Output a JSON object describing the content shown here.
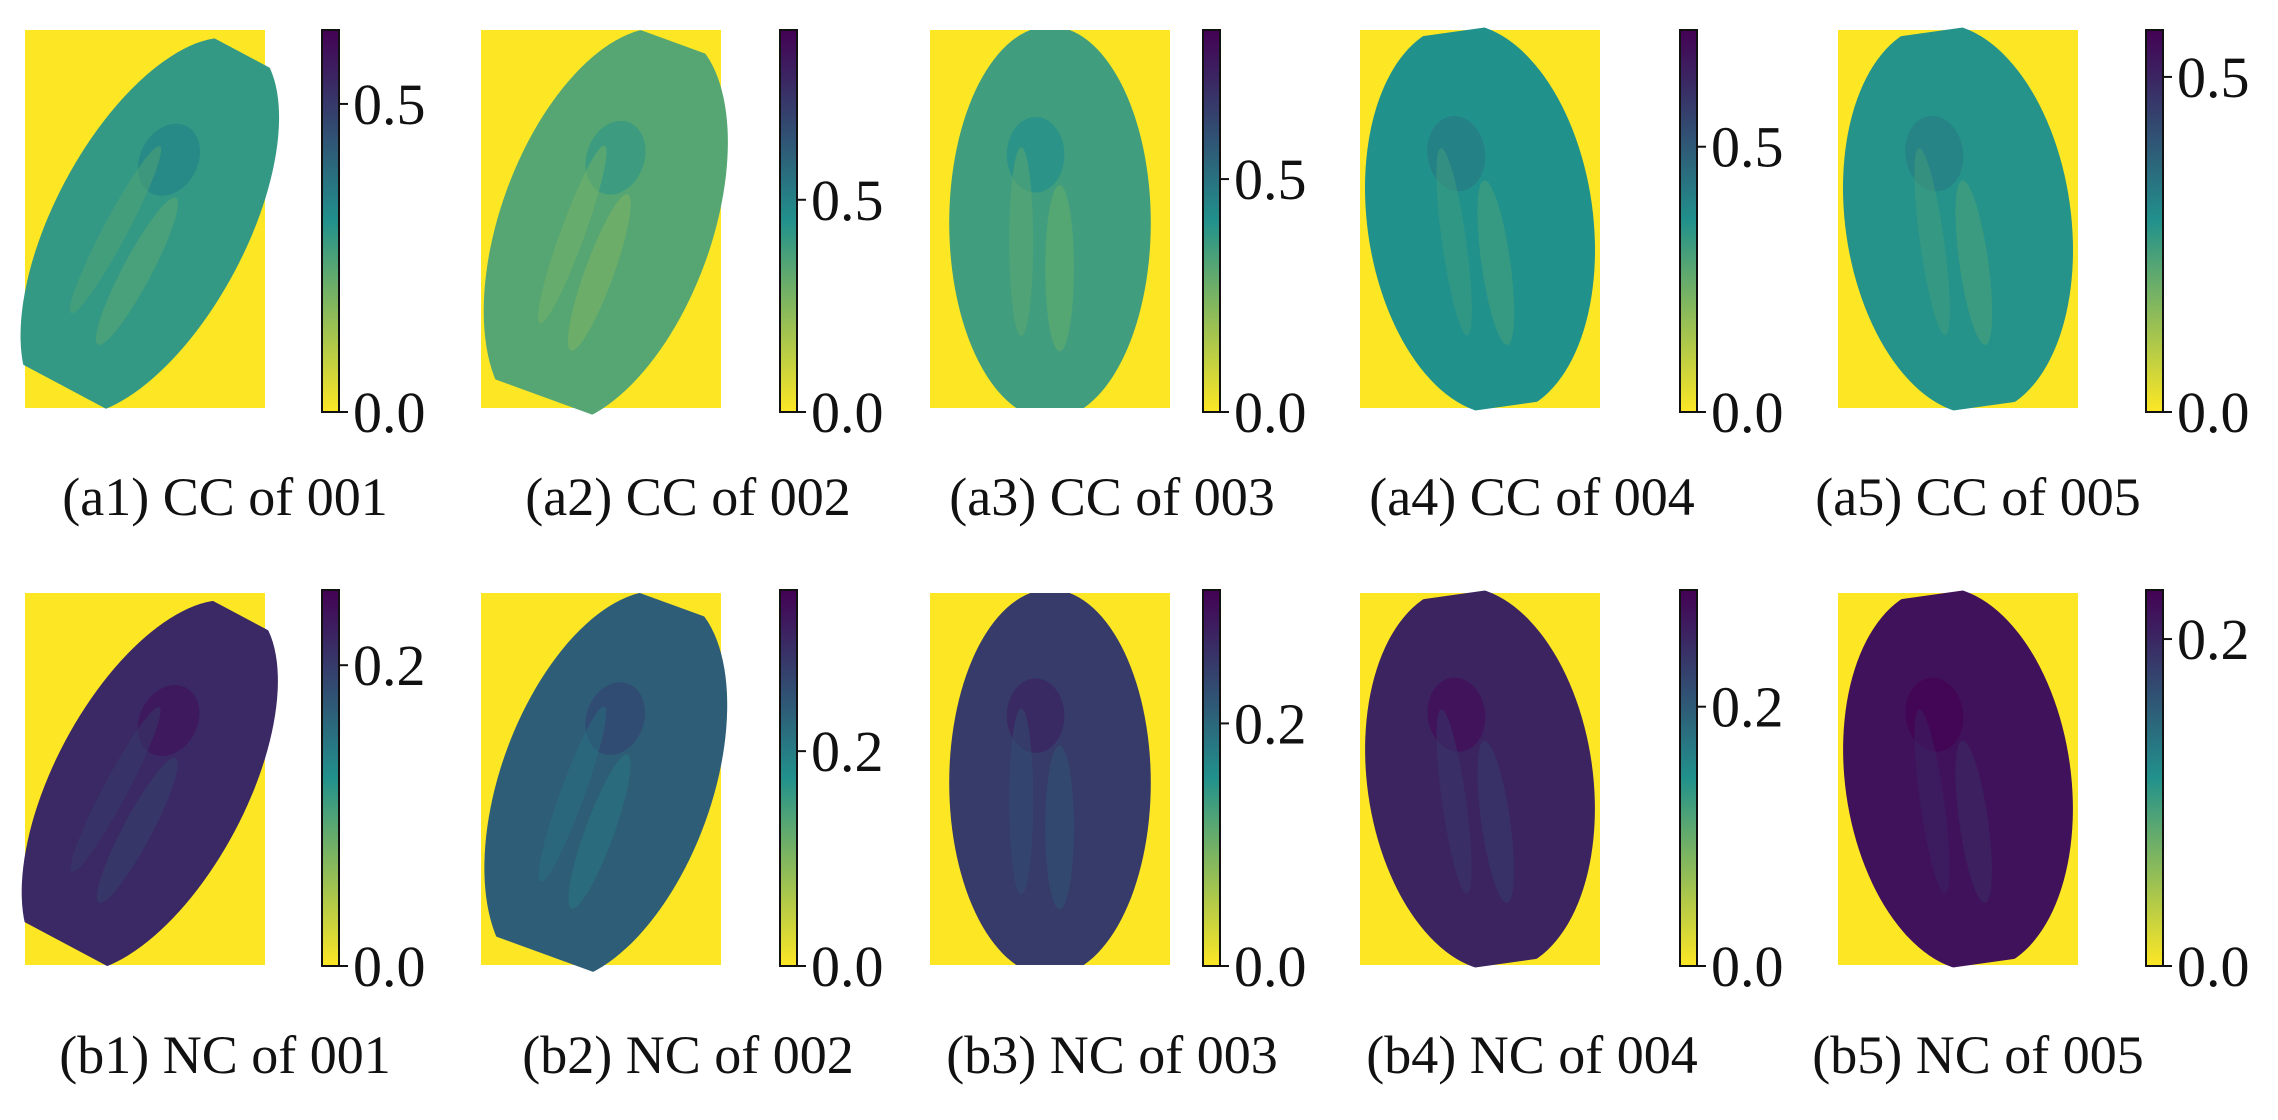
{
  "figure": {
    "rows": [
      {
        "id": "a",
        "colormap": "viridis-reversed",
        "colors": {
          "low": "#fde725",
          "mid": "#21918c",
          "high": "#440154"
        },
        "panels": [
          {
            "label": "(a1) CC of 001",
            "colorbar_ticks": [
              "0.5",
              "0.0"
            ],
            "tick_values": [
              0.5,
              0.0
            ],
            "cbar_max": 0.62,
            "fill_level": 0.46,
            "seed_shape": "tilted"
          },
          {
            "label": "(a2) CC of 002",
            "colorbar_ticks": [
              "0.5",
              "0.0"
            ],
            "tick_values": [
              0.5,
              0.0
            ],
            "cbar_max": 0.9,
            "fill_level": 0.38,
            "seed_shape": "tilted-wide"
          },
          {
            "label": "(a3) CC of 003",
            "colorbar_ticks": [
              "0.5",
              "0.0"
            ],
            "tick_values": [
              0.5,
              0.0
            ],
            "cbar_max": 0.82,
            "fill_level": 0.43,
            "seed_shape": "upright"
          },
          {
            "label": "(a4) CC of 004",
            "colorbar_ticks": [
              "0.5",
              "0.0"
            ],
            "tick_values": [
              0.5,
              0.0
            ],
            "cbar_max": 0.72,
            "fill_level": 0.5,
            "seed_shape": "upright-wide"
          },
          {
            "label": "(a5) CC of 005",
            "colorbar_ticks": [
              "0.5",
              "0.0"
            ],
            "tick_values": [
              0.5,
              0.0
            ],
            "cbar_max": 0.57,
            "fill_level": 0.49,
            "seed_shape": "upright-wide"
          }
        ]
      },
      {
        "id": "b",
        "colormap": "viridis-reversed",
        "colors": {
          "low": "#fde725",
          "mid": "#21918c",
          "high": "#440154"
        },
        "panels": [
          {
            "label": "(b1) NC of 001",
            "colorbar_ticks": [
              "0.2",
              "0.0"
            ],
            "tick_values": [
              0.2,
              0.0
            ],
            "cbar_max": 0.25,
            "fill_level": 0.86,
            "seed_shape": "tilted"
          },
          {
            "label": "(b2) NC of 002",
            "colorbar_ticks": [
              "0.2",
              "0.0"
            ],
            "tick_values": [
              0.2,
              0.0
            ],
            "cbar_max": 0.35,
            "fill_level": 0.68,
            "seed_shape": "tilted-wide"
          },
          {
            "label": "(b3) NC of 003",
            "colorbar_ticks": [
              "0.2",
              "0.0"
            ],
            "tick_values": [
              0.2,
              0.0
            ],
            "cbar_max": 0.31,
            "fill_level": 0.8,
            "seed_shape": "upright"
          },
          {
            "label": "(b4) NC of 004",
            "colorbar_ticks": [
              "0.2",
              "0.0"
            ],
            "tick_values": [
              0.2,
              0.0
            ],
            "cbar_max": 0.29,
            "fill_level": 0.88,
            "seed_shape": "upright-wide"
          },
          {
            "label": "(b5) NC of 005",
            "colorbar_ticks": [
              "0.2",
              "0.0"
            ],
            "tick_values": [
              0.2,
              0.0
            ],
            "cbar_max": 0.23,
            "fill_level": 0.94,
            "seed_shape": "upright-wide"
          }
        ]
      }
    ]
  },
  "chart_data": [
    {
      "type": "heatmap",
      "title": "(a1) CC of 001",
      "colorbar": {
        "ticks": [
          0.0,
          0.5
        ],
        "range": [
          0.0,
          0.62
        ]
      },
      "background_value": 0.0
    },
    {
      "type": "heatmap",
      "title": "(a2) CC of 002",
      "colorbar": {
        "ticks": [
          0.0,
          0.5
        ],
        "range": [
          0.0,
          0.9
        ]
      },
      "background_value": 0.0
    },
    {
      "type": "heatmap",
      "title": "(a3) CC of 003",
      "colorbar": {
        "ticks": [
          0.0,
          0.5
        ],
        "range": [
          0.0,
          0.82
        ]
      },
      "background_value": 0.0
    },
    {
      "type": "heatmap",
      "title": "(a4) CC of 004",
      "colorbar": {
        "ticks": [
          0.0,
          0.5
        ],
        "range": [
          0.0,
          0.72
        ]
      },
      "background_value": 0.0
    },
    {
      "type": "heatmap",
      "title": "(a5) CC of 005",
      "colorbar": {
        "ticks": [
          0.0,
          0.5
        ],
        "range": [
          0.0,
          0.57
        ]
      },
      "background_value": 0.0
    },
    {
      "type": "heatmap",
      "title": "(b1) NC of 001",
      "colorbar": {
        "ticks": [
          0.0,
          0.2
        ],
        "range": [
          0.0,
          0.25
        ]
      },
      "background_value": 0.0
    },
    {
      "type": "heatmap",
      "title": "(b2) NC of 002",
      "colorbar": {
        "ticks": [
          0.0,
          0.2
        ],
        "range": [
          0.0,
          0.35
        ]
      },
      "background_value": 0.0
    },
    {
      "type": "heatmap",
      "title": "(b3) NC of 003",
      "colorbar": {
        "ticks": [
          0.0,
          0.2
        ],
        "range": [
          0.0,
          0.31
        ]
      },
      "background_value": 0.0
    },
    {
      "type": "heatmap",
      "title": "(b4) NC of 004",
      "colorbar": {
        "ticks": [
          0.0,
          0.2
        ],
        "range": [
          0.0,
          0.29
        ]
      },
      "background_value": 0.0
    },
    {
      "type": "heatmap",
      "title": "(b5) NC of 005",
      "colorbar": {
        "ticks": [
          0.0,
          0.2
        ],
        "range": [
          0.0,
          0.23
        ]
      },
      "background_value": 0.0
    }
  ]
}
